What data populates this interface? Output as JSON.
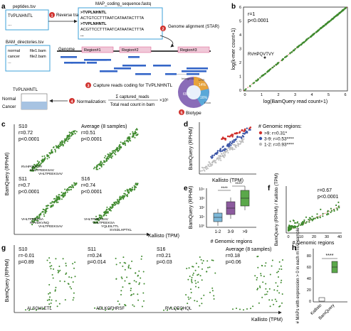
{
  "panel_a": {
    "letter": "a",
    "peptides_file": "peptides.tsv",
    "peptide_seq": "TVPLNHNTL",
    "fastq_file": "MAP_coding_sequence.fastq",
    "fastq_lines": [
      ">TVPLNHNTL",
      "ACTGTCCTTTAATCATAATACTTTA",
      ">TVPLNHNTL",
      "ACGTTCCTTTAATCATAATACTTTA",
      "..."
    ],
    "step1": "Reverse translation",
    "step2": "Genome alignment (STAR)",
    "bam_file": "BAM_directories.tsv",
    "bam_rows": [
      [
        "normal",
        "file1.bam"
      ],
      [
        "cancer",
        "file2.bam"
      ],
      [
        "...",
        ""
      ]
    ],
    "genome_label": "Genome",
    "regions": [
      "Region#1",
      "Region#2",
      "Region#3"
    ],
    "step3": "Capture reads coding for TVPLNHNTL",
    "heatmap_title": "TVPLNHNTL",
    "heatmap_rows": [
      "Normal",
      "Cancer"
    ],
    "step4": "Normalization:",
    "formula_num": "Σ captured_reads",
    "formula_den": "Total read count in bam",
    "formula_mult": "×10⁶",
    "step5": "Biotype",
    "pie_labels": [
      "65%",
      "14%",
      "16%",
      "Intergenic",
      "UTR",
      "Exon"
    ]
  },
  "panel_b": {
    "letter": "b",
    "r": "r=1",
    "p": "p<0.0001",
    "outlier_label": "RVHPQVTVY",
    "xlabel": "log(BamQuery read count+1)",
    "ylabel": "log(k-mer count+1)",
    "xticks": [
      "0",
      "1",
      "2",
      "3",
      "4",
      "5",
      "6"
    ],
    "yticks": [
      "0",
      "1",
      "2",
      "3",
      "4",
      "5",
      "6"
    ]
  },
  "panel_c": {
    "letter": "c",
    "ylabel": "BamQuery (RPHM)",
    "xlabel": "Kallisto (TPM)",
    "plots": [
      {
        "name": "S10",
        "r": "r=0.72",
        "p": "p<0.0001",
        "labels": [
          "RVHPQVTVY",
          "VHLTPEEKSAV",
          "VHLTPEEKSAV"
        ]
      },
      {
        "name": "Average (8 samples)",
        "r": "r=0.51",
        "p": "p<0.0001",
        "labels": []
      },
      {
        "name": "S11",
        "r": "r=0.7",
        "p": "p<0.0001",
        "labels": [
          "VHLTPEEKSA",
          "RVVDKVNQ",
          "VHLTPEEKSAV"
        ]
      },
      {
        "name": "S16",
        "r": "r=0.74",
        "p": "p<0.0001",
        "labels": [
          "VHLTPEEKSAV",
          "VHLTPEEKSA",
          "YQLEILTTL",
          "SVSDLHPTKL"
        ]
      }
    ]
  },
  "panel_d": {
    "letter": "d",
    "legend_title": "# Genomic regions:",
    "legend": [
      {
        "label": ">9: r=0.31*",
        "color": "#d0312d"
      },
      {
        "label": "3-9: r=0.53****",
        "color": "#3b55a6"
      },
      {
        "label": "1-2: r=0.93****",
        "color": "#b8b8b8"
      }
    ],
    "xlabel": "Kallisto (TPM)",
    "ylabel": "BamQuery (RPHM)"
  },
  "panel_e": {
    "letter": "e",
    "ylabel": "BamQuery (RPHM)",
    "xlabel": "# Genomic  regions",
    "categories": [
      "1-2",
      "3-9",
      ">9"
    ],
    "colors": [
      "#7db8d8",
      "#8c5a9e",
      "#5aa84a"
    ],
    "sig": [
      "****",
      "****"
    ],
    "yticks": [
      "10⁰",
      "10¹",
      "10²",
      "10³",
      "10⁴"
    ]
  },
  "panel_f": {
    "letter": "f",
    "r": "r=0.67",
    "p": "p<0.0001",
    "ylabel": "BamQuery (RPHM) / Kallisto (TPM)",
    "xlabel": "# Genomic regions",
    "xticks": [
      "0",
      "10",
      "20",
      "30",
      "40"
    ]
  },
  "panel_g": {
    "letter": "g",
    "ylabel": "BamQuery (RPHM)",
    "xlabel": "Kallisto (TPM)",
    "plots": [
      {
        "name": "S10",
        "r": "r=-0.01",
        "p": "p=0.89",
        "label": "ALSGHLETL"
      },
      {
        "name": "S11",
        "r": "r=0.24",
        "p": "p=0.014",
        "label": "AELKGFHRSF"
      },
      {
        "name": "S16",
        "r": "r=0.21",
        "p": "p=0.03",
        "label": "RVLQEQHQL"
      },
      {
        "name": "Average (8 samples)",
        "r": "r=0.18",
        "p": "p=0.06",
        "label": ""
      }
    ]
  },
  "panel_h": {
    "letter": "h",
    "ylabel": "# MAPs with expression > 0 in each mTEC sample",
    "sig": "****",
    "categories": [
      "Kallisto",
      "BamQuery"
    ],
    "yticks": [
      "0",
      "20",
      "40",
      "60",
      "80"
    ]
  },
  "colors": {
    "green": "#3f8a2e",
    "red_step": "#d0312d",
    "blue_read": "#3466c8",
    "pink_region": "#f0c8d8",
    "box_blue": "#4a90c8"
  }
}
